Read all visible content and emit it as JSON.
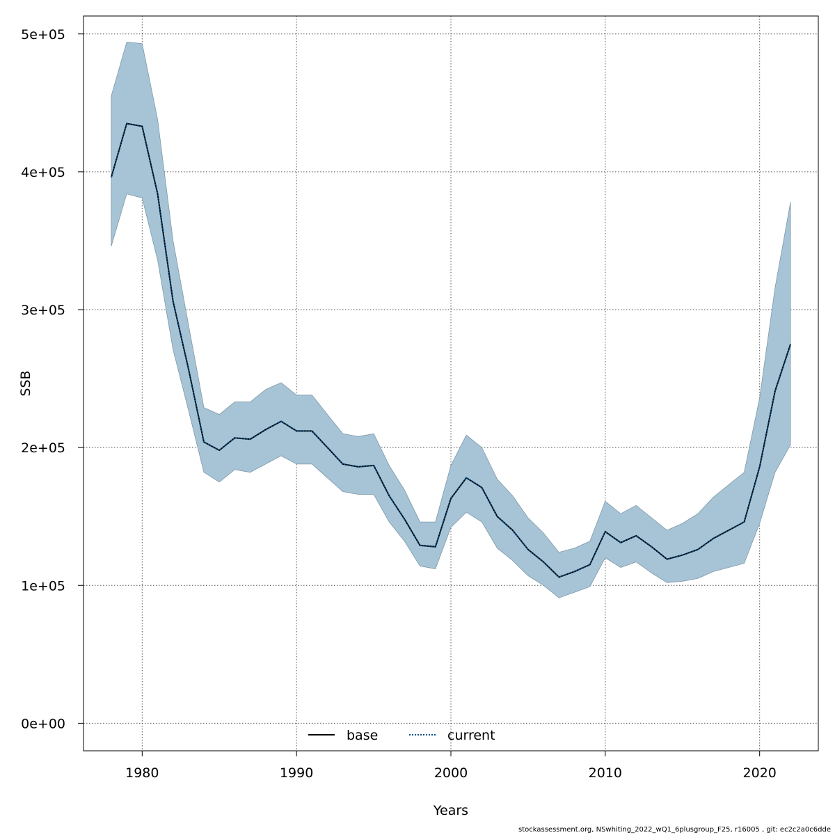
{
  "chart_data": {
    "type": "area",
    "title": "",
    "xlabel": "Years",
    "ylabel": "SSB",
    "xlim": [
      1976.2,
      2023.8
    ],
    "ylim": [
      -20000,
      513000
    ],
    "x_ticks": [
      1980,
      1990,
      2000,
      2010,
      2020
    ],
    "x_tick_labels": [
      "1980",
      "1990",
      "2000",
      "2010",
      "2020"
    ],
    "y_ticks": [
      0,
      100000,
      200000,
      300000,
      400000,
      500000
    ],
    "y_tick_labels": [
      "0e+00",
      "1e+05",
      "2e+05",
      "3e+05",
      "4e+05",
      "5e+05"
    ],
    "grid": true,
    "legend_position": "bottom-center",
    "band_color": "#a6c4d6",
    "band_edge_color": "#7f98a8",
    "x": [
      1978,
      1979,
      1980,
      1981,
      1982,
      1983,
      1984,
      1985,
      1986,
      1987,
      1988,
      1989,
      1990,
      1991,
      1992,
      1993,
      1994,
      1995,
      1996,
      1997,
      1998,
      1999,
      2000,
      2001,
      2002,
      2003,
      2004,
      2005,
      2006,
      2007,
      2008,
      2009,
      2010,
      2011,
      2012,
      2013,
      2014,
      2015,
      2016,
      2017,
      2018,
      2019,
      2020,
      2021,
      2022
    ],
    "band_upper": [
      455000,
      494000,
      493000,
      438000,
      350000,
      289000,
      229000,
      224000,
      233000,
      233000,
      242000,
      247000,
      238000,
      238000,
      224000,
      210000,
      208000,
      210000,
      187000,
      169000,
      146000,
      146000,
      187000,
      209000,
      200000,
      177000,
      165000,
      149000,
      138000,
      124000,
      127000,
      132000,
      161000,
      152000,
      158000,
      149000,
      140000,
      145000,
      152000,
      164000,
      173000,
      182000,
      236000,
      316000,
      378000
    ],
    "band_lower": [
      346000,
      384000,
      381000,
      336000,
      271000,
      227000,
      182000,
      175000,
      184000,
      182000,
      188000,
      194000,
      188000,
      188000,
      178000,
      168000,
      166000,
      166000,
      146000,
      132000,
      114000,
      112000,
      142000,
      153000,
      146000,
      127000,
      118000,
      107000,
      100000,
      91000,
      95000,
      99000,
      120000,
      113000,
      117000,
      109000,
      102000,
      103000,
      105000,
      110000,
      113000,
      116000,
      145000,
      182000,
      202000
    ],
    "series": [
      {
        "name": "base",
        "color": "#000000",
        "style": "solid",
        "values": [
          396000,
          435000,
          433000,
          384000,
          306000,
          257000,
          204000,
          198000,
          207000,
          206000,
          213000,
          219000,
          212000,
          212000,
          200000,
          188000,
          186000,
          187000,
          165000,
          148000,
          129000,
          128000,
          163000,
          178000,
          171000,
          150000,
          140000,
          126000,
          117000,
          106000,
          110000,
          115000,
          139000,
          131000,
          136000,
          128000,
          119000,
          122000,
          126000,
          134000,
          140000,
          146000,
          186000,
          241000,
          275000
        ]
      },
      {
        "name": "current",
        "color": "#0a4f86",
        "style": "dotted",
        "values": [
          396000,
          435000,
          433000,
          384000,
          306000,
          257000,
          204000,
          198000,
          207000,
          206000,
          213000,
          219000,
          212000,
          212000,
          200000,
          188000,
          186000,
          187000,
          165000,
          148000,
          129000,
          128000,
          163000,
          178000,
          171000,
          150000,
          140000,
          126000,
          117000,
          106000,
          110000,
          115000,
          139000,
          131000,
          136000,
          128000,
          119000,
          122000,
          126000,
          134000,
          140000,
          146000,
          186000,
          241000,
          275000
        ]
      }
    ]
  },
  "footer": {
    "note": "stockassessment.org, NSwhiting_2022_wQ1_6plusgroup_F25, r16005 , git: ec2c2a0c6dde"
  }
}
